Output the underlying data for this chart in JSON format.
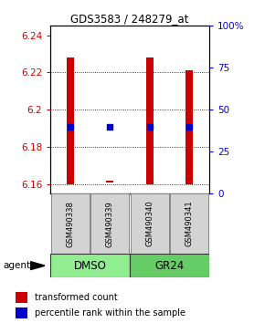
{
  "title": "GDS3583 / 248279_at",
  "samples": [
    "GSM490338",
    "GSM490339",
    "GSM490340",
    "GSM490341"
  ],
  "ylim_left": [
    6.155,
    6.245
  ],
  "ylim_right": [
    0,
    100
  ],
  "yticks_left": [
    6.16,
    6.18,
    6.2,
    6.22,
    6.24
  ],
  "yticks_right": [
    0,
    25,
    50,
    75,
    100
  ],
  "ytick_labels_left": [
    "6.16",
    "6.18",
    "6.2",
    "6.22",
    "6.24"
  ],
  "ytick_labels_right": [
    "0",
    "25",
    "50",
    "75",
    "100%"
  ],
  "bar_bottoms": [
    6.16,
    6.161,
    6.16,
    6.16
  ],
  "bar_tops": [
    6.228,
    6.162,
    6.228,
    6.221
  ],
  "bar_color": "#CC0000",
  "bar_width": 0.18,
  "blue_y": [
    6.191,
    6.191,
    6.191,
    6.191
  ],
  "blue_color": "#0000CC",
  "blue_size": 18,
  "left_tick_color": "#CC0000",
  "right_tick_color": "#0000CC",
  "grid_color": "#000000",
  "sample_box_color": "#d3d3d3",
  "group_box_color_dmso": "#90EE90",
  "group_box_color_gr24": "#66CC66",
  "legend_red_label": "transformed count",
  "legend_blue_label": "percentile rank within the sample",
  "agent_label": "agent"
}
